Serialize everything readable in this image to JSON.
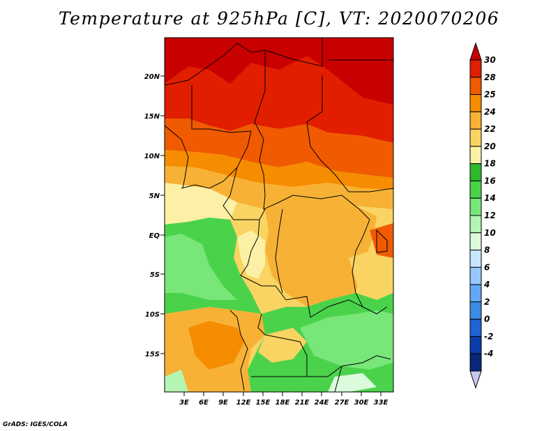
{
  "title": "Temperature at 925hPa [C], VT: 2020070206",
  "credit": "GrADS: IGES/COLA",
  "map": {
    "lat_ticks": [
      "20N",
      "15N",
      "10N",
      "5N",
      "EQ",
      "5S",
      "10S",
      "15S"
    ],
    "lon_ticks": [
      "3E",
      "6E",
      "9E",
      "12E",
      "15E",
      "18E",
      "21E",
      "24E",
      "27E",
      "30E",
      "33E"
    ]
  },
  "colorbar": {
    "labels": [
      "30",
      "28",
      "25",
      "24",
      "22",
      "20",
      "18",
      "16",
      "14",
      "12",
      "10",
      "8",
      "6",
      "4",
      "2",
      "0",
      "-2",
      "-4"
    ],
    "colors": [
      "#c80000",
      "#e11e00",
      "#f05a00",
      "#f68c00",
      "#f7b236",
      "#f9d462",
      "#fbf0a6",
      "#2eb82e",
      "#4bd24b",
      "#78e678",
      "#b4f5b4",
      "#dcfadc",
      "#c8e6ff",
      "#96c8ff",
      "#64a8f5",
      "#3c8ce6",
      "#1e64d2",
      "#0a3caa",
      "#082878",
      "#c8c8f0"
    ]
  }
}
